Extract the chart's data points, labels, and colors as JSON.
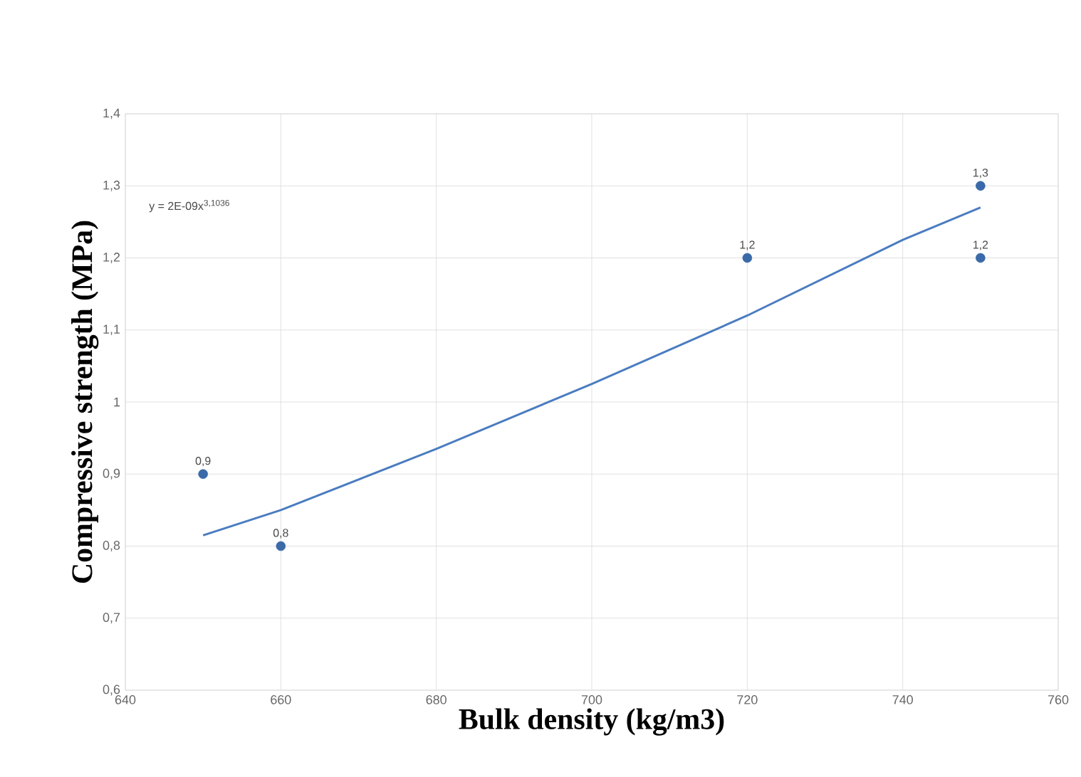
{
  "chart_data": {
    "type": "scatter",
    "xlabel": "Bulk density (kg/m3)",
    "ylabel": "Compressive strength (MPa)",
    "annotations": [
      "y = 2E-09x$^{3,1036}$"
    ],
    "series": [
      {
        "color": "#3a6aa8",
        "x": [
          650,
          660,
          720,
          750,
          750
        ],
        "values": [
          0.9,
          0.8,
          1.2,
          1.3,
          1.2
        ],
        "value_labels": [
          "0,9",
          "0,8",
          "1,2",
          "1,3",
          "1,2"
        ],
        "marker": "circle"
      },
      {
        "type": "line",
        "color": "#4a7cc0",
        "x": [
          650,
          660,
          680,
          700,
          720,
          740,
          750
        ],
        "values": [
          0.815,
          0.85,
          0.935,
          1.025,
          1.12,
          1.225,
          1.27
        ],
        "marker": "none"
      }
    ],
    "xlim": [
      640,
      760
    ],
    "ylim": [
      0.6,
      1.4
    ],
    "xticks": [
      640,
      660,
      680,
      700,
      720,
      740,
      760
    ],
    "yticks": [
      {
        "value": 0.6,
        "label": "0,6"
      },
      {
        "value": 0.7,
        "label": "0,7"
      },
      {
        "value": 0.8,
        "label": "0,8"
      },
      {
        "value": 0.9,
        "label": "0,9"
      },
      {
        "value": 1,
        "label": "1"
      },
      {
        "value": 1.1,
        "label": "1,1"
      },
      {
        "value": 1.2,
        "label": "1,2"
      },
      {
        "value": 1.3,
        "label": "1,3"
      },
      {
        "value": 1.4,
        "label": "1,4"
      }
    ],
    "grid": true
  }
}
